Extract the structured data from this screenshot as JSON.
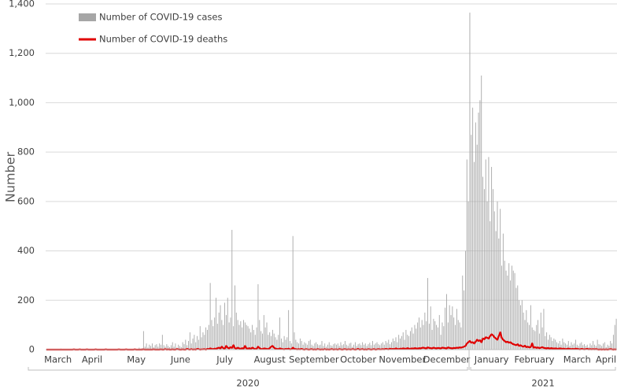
{
  "chart_data": {
    "type": "bar_line",
    "ylabel": "Number",
    "ylim": [
      0,
      1400
    ],
    "yticks": [
      0,
      200,
      400,
      600,
      800,
      {
        "value": 1000,
        "label": "1,000"
      },
      {
        "value": 1200,
        "label": "1,200"
      },
      {
        "value": 1400,
        "label": "1,400"
      }
    ],
    "grid": true,
    "series": [
      {
        "name": "Number of COVID-19 cases",
        "color": "#a6a6a6",
        "type": "bar"
      },
      {
        "name": "Number of COVID-19 deaths",
        "color": "#e00000",
        "type": "line"
      }
    ],
    "years": [
      {
        "label": "2020",
        "months": [
          {
            "name": "March",
            "values": [
              [
                0,
                0,
                1,
                0,
                2,
                1,
                3,
                2,
                1,
                2,
                4,
                3,
                2,
                3,
                2,
                1,
                2
              ],
              [
                0,
                0,
                0,
                0,
                0,
                0,
                0,
                0,
                0,
                0,
                0,
                0,
                0,
                0,
                0,
                0,
                0
              ]
            ]
          },
          {
            "name": "April",
            "values": [
              [
                3,
                2,
                4,
                1,
                2,
                3,
                1,
                2,
                1,
                0,
                2,
                1,
                3,
                1,
                0,
                1,
                2,
                0,
                1,
                1,
                0,
                2,
                1,
                0,
                1,
                0,
                1,
                0,
                2,
                1
              ],
              [
                0,
                0,
                1,
                0,
                0,
                0,
                1,
                0,
                0,
                0,
                0,
                1,
                0,
                0,
                0,
                0,
                0,
                1,
                0,
                0,
                0,
                0,
                0,
                0,
                1,
                0,
                0,
                0,
                0,
                0
              ]
            ]
          },
          {
            "name": "May",
            "values": [
              [
                0,
                1,
                0,
                2,
                1,
                0,
                1,
                2,
                0,
                1,
                3,
                0,
                2,
                1,
                5,
                2,
                3,
                8,
                4,
                6,
                75,
                12,
                25,
                8,
                20,
                15,
                25,
                10,
                18,
                22,
                12
              ],
              [
                0,
                0,
                0,
                1,
                0,
                0,
                0,
                0,
                1,
                0,
                0,
                0,
                0,
                0,
                1,
                0,
                0,
                0,
                0,
                0,
                1,
                0,
                0,
                0,
                0,
                0,
                0,
                1,
                0,
                0,
                0
              ]
            ]
          },
          {
            "name": "June",
            "values": [
              [
                25,
                20,
                60,
                18,
                12,
                22,
                15,
                10,
                18,
                30,
                12,
                25,
                8,
                20,
                15,
                10,
                30,
                22,
                40,
                18,
                35,
                70,
                25,
                45,
                60,
                30,
                55,
                40,
                95,
                50
              ],
              [
                0,
                1,
                0,
                0,
                2,
                0,
                1,
                0,
                0,
                1,
                0,
                0,
                2,
                1,
                0,
                0,
                1,
                0,
                0,
                3,
                1,
                0,
                2,
                0,
                1,
                0,
                3,
                2,
                0,
                1
              ]
            ]
          },
          {
            "name": "July",
            "values": [
              [
                70,
                60,
                90,
                80,
                100,
                270,
                120,
                95,
                130,
                210,
                105,
                150,
                180,
                120,
                100,
                190,
                140,
                210,
                110,
                130,
                485,
                95,
                260,
                150,
                120,
                100,
                115,
                90,
                120,
                110,
                100
              ],
              [
                1,
                2,
                0,
                3,
                2,
                5,
                3,
                2,
                4,
                3,
                6,
                8,
                5,
                12,
                6,
                4,
                15,
                8,
                5,
                10,
                7,
                18,
                6,
                4,
                8,
                5,
                3,
                6,
                4,
                15,
                5
              ]
            ]
          },
          {
            "name": "August",
            "values": [
              [
                95,
                85,
                70,
                100,
                80,
                60,
                90,
                265,
                120,
                75,
                65,
                140,
                90,
                110,
                60,
                70,
                55,
                80,
                65,
                50,
                40,
                60,
                130,
                45,
                30,
                55,
                40,
                50,
                160,
                35,
                25
              ],
              [
                4,
                6,
                3,
                8,
                5,
                2,
                4,
                12,
                6,
                3,
                2,
                5,
                4,
                3,
                2,
                6,
                12,
                15,
                8,
                4,
                3,
                2,
                5,
                3,
                2,
                1,
                3,
                2,
                4,
                1,
                2
              ]
            ]
          },
          {
            "name": "September",
            "values": [
              [
                460,
                70,
                40,
                30,
                25,
                45,
                35,
                20,
                30,
                25,
                20,
                35,
                40,
                20,
                15,
                25,
                30,
                22,
                18,
                20,
                35,
                15,
                25,
                12,
                20,
                30,
                18,
                15,
                22,
                25
              ],
              [
                8,
                3,
                2,
                1,
                2,
                1,
                3,
                1,
                0,
                2,
                1,
                0,
                1,
                2,
                0,
                1,
                0,
                2,
                1,
                0,
                1,
                0,
                2,
                0,
                1,
                0,
                1,
                2,
                0,
                1
              ]
            ]
          },
          {
            "name": "October",
            "values": [
              [
                20,
                25,
                15,
                30,
                18,
                22,
                35,
                20,
                15,
                25,
                28,
                12,
                20,
                30,
                15,
                22,
                25,
                18,
                30,
                20,
                25,
                15,
                22,
                28,
                18,
                35,
                20,
                25,
                30,
                22,
                18
              ],
              [
                1,
                0,
                2,
                1,
                0,
                1,
                2,
                0,
                1,
                1,
                0,
                2,
                1,
                0,
                1,
                3,
                0,
                1,
                2,
                0,
                1,
                0,
                2,
                1,
                0,
                1,
                2,
                0,
                1,
                2,
                1
              ]
            ]
          },
          {
            "name": "November",
            "values": [
              [
                25,
                30,
                20,
                35,
                28,
                40,
                22,
                30,
                45,
                35,
                50,
                30,
                60,
                45,
                55,
                70,
                40,
                80,
                60,
                55,
                75,
                90,
                65,
                100,
                85,
                110,
                130,
                90,
                120,
                100
              ],
              [
                1,
                2,
                1,
                3,
                2,
                1,
                4,
                2,
                3,
                2,
                5,
                3,
                2,
                4,
                3,
                5,
                4,
                3,
                6,
                4,
                3,
                5,
                4,
                6,
                5,
                4,
                6,
                5,
                7,
                8
              ]
            ]
          },
          {
            "name": "December",
            "values": [
              [
                150,
                115,
                290,
                105,
                175,
                80,
                125,
                115,
                100,
                90,
                140,
                60,
                110,
                95,
                170,
                225,
                110,
                180,
                140,
                175,
                130,
                100,
                165,
                120,
                110,
                90,
                300,
                240,
                400,
                770,
                600
              ],
              [
                6,
                5,
                9,
                7,
                6,
                5,
                8,
                6,
                5,
                7,
                6,
                5,
                8,
                7,
                6,
                5,
                9,
                7,
                6,
                5,
                7,
                6,
                8,
                7,
                9,
                8,
                10,
                12,
                15,
                25,
                30
              ]
            ]
          }
        ]
      },
      {
        "label": "2021",
        "months": [
          {
            "name": "January",
            "values": [
              [
                1365,
                870,
                980,
                760,
                920,
                830,
                960,
                1010,
                1110,
                700,
                650,
                770,
                600,
                780,
                520,
                740,
                650,
                560,
                480,
                600,
                450,
                570,
                340,
                470,
                360,
                320,
                300,
                350,
                280,
                340,
                320
              ],
              [
                35,
                28,
                30,
                25,
                32,
                40,
                35,
                38,
                30,
                45,
                42,
                50,
                48,
                45,
                55,
                62,
                58,
                50,
                45,
                40,
                55,
                70,
                48,
                40,
                35,
                30,
                32,
                28,
                30,
                25,
                22
              ]
            ]
          },
          {
            "name": "February",
            "values": [
              [
                310,
                250,
                260,
                200,
                180,
                200,
                150,
                120,
                160,
                110,
                100,
                180,
                90,
                80,
                75,
                100,
                120,
                65,
                150,
                90,
                165,
                55,
                70,
                40,
                60,
                50,
                35,
                45
              ],
              [
                20,
                18,
                22,
                15,
                18,
                14,
                12,
                16,
                10,
                12,
                9,
                11,
                25,
                8,
                10,
                7,
                9,
                6,
                8,
                10,
                7,
                6,
                5,
                7,
                4,
                6,
                5,
                4
              ]
            ]
          },
          {
            "name": "March",
            "values": [
              [
                40,
                30,
                25,
                35,
                20,
                45,
                30,
                25,
                20,
                35,
                15,
                30,
                20,
                25,
                40,
                20,
                15,
                25,
                30,
                18,
                22,
                15,
                20,
                10,
                25,
                18,
                35,
                20,
                15,
                40,
                22
              ],
              [
                5,
                4,
                3,
                5,
                4,
                3,
                4,
                2,
                3,
                4,
                3,
                2,
                3,
                2,
                4,
                3,
                2,
                1,
                3,
                2,
                1,
                2,
                3,
                1,
                2,
                1,
                2,
                1,
                2,
                1,
                0
              ]
            ]
          },
          {
            "name": "April",
            "values": [
              [
                20,
                15,
                25,
                30,
                10,
                20,
                15,
                35,
                25,
                60,
                100,
                125
              ],
              [
                1,
                0,
                1,
                0,
                1,
                0,
                1,
                2,
                1,
                0,
                1,
                0
              ]
            ]
          }
        ]
      }
    ]
  }
}
